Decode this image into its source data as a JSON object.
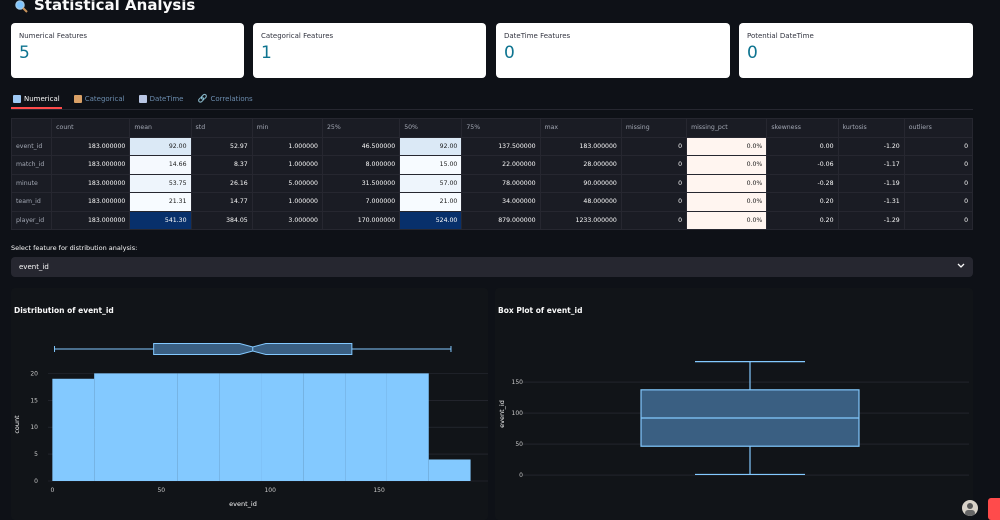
{
  "page": {
    "title": "Statistical Analysis"
  },
  "metrics": [
    {
      "label": "Numerical Features",
      "value": "5"
    },
    {
      "label": "Categorical Features",
      "value": "1"
    },
    {
      "label": "DateTime Features",
      "value": "0"
    },
    {
      "label": "Potential DateTime",
      "value": "0"
    }
  ],
  "tabs": [
    {
      "label": "Numerical",
      "icon": "chart-icon",
      "active": true
    },
    {
      "label": "Categorical",
      "icon": "folder-icon",
      "active": false
    },
    {
      "label": "DateTime",
      "icon": "calendar-icon",
      "active": false
    },
    {
      "label": "Correlations",
      "icon": "link-icon",
      "active": false
    }
  ],
  "table": {
    "columns": [
      "count",
      "mean",
      "std",
      "min",
      "25%",
      "50%",
      "75%",
      "max",
      "missing",
      "missing_pct",
      "skewness",
      "kurtosis",
      "outliers"
    ],
    "rows": [
      {
        "name": "event_id",
        "cells": [
          "183.000000",
          "92.00",
          "52.97",
          "1.000000",
          "46.500000",
          "92.00",
          "137.500000",
          "183.000000",
          "0",
          "0.0%",
          "0.00",
          "-1.20",
          "0"
        ]
      },
      {
        "name": "match_id",
        "cells": [
          "183.000000",
          "14.66",
          "8.37",
          "1.000000",
          "8.000000",
          "15.00",
          "22.000000",
          "28.000000",
          "0",
          "0.0%",
          "-0.06",
          "-1.17",
          "0"
        ]
      },
      {
        "name": "minute",
        "cells": [
          "183.000000",
          "53.75",
          "26.16",
          "5.000000",
          "31.500000",
          "57.00",
          "78.000000",
          "90.000000",
          "0",
          "0.0%",
          "-0.28",
          "-1.19",
          "0"
        ]
      },
      {
        "name": "team_id",
        "cells": [
          "183.000000",
          "21.31",
          "14.77",
          "1.000000",
          "7.000000",
          "21.00",
          "34.000000",
          "48.000000",
          "0",
          "0.0%",
          "0.20",
          "-1.31",
          "0"
        ]
      },
      {
        "name": "player_id",
        "cells": [
          "183.000000",
          "541.30",
          "384.05",
          "3.000000",
          "170.000000",
          "524.00",
          "879.000000",
          "1233.000000",
          "0",
          "0.0%",
          "0.20",
          "-1.29",
          "0"
        ]
      }
    ],
    "highlight_colors": {
      "mean": [
        "#dbe9f6",
        "#f5f9fe",
        "#eef5fc",
        "#f7fbff",
        "#08306b"
      ],
      "median": [
        "#dbe9f6",
        "#f7fbff",
        "#eef5fc",
        "#f7fbff",
        "#08306b"
      ],
      "missing_pct": "#fff5f0"
    }
  },
  "selector": {
    "label": "Select feature for distribution analysis:",
    "value": "event_id"
  },
  "chart_data": [
    {
      "type": "bar",
      "title": "Distribution of event_id",
      "xlabel": "event_id",
      "ylabel": "count",
      "x_ticks": [
        0,
        50,
        100,
        150
      ],
      "y_ticks": [
        0,
        5,
        10,
        15,
        20
      ],
      "xlim": [
        -2,
        200
      ],
      "ylim": [
        0,
        21
      ],
      "bins": [
        {
          "x0": 0,
          "x1": 19.2,
          "count": 19
        },
        {
          "x0": 19.2,
          "x1": 38.4,
          "count": 20
        },
        {
          "x0": 38.4,
          "x1": 57.6,
          "count": 20
        },
        {
          "x0": 57.6,
          "x1": 76.8,
          "count": 20
        },
        {
          "x0": 76.8,
          "x1": 96.0,
          "count": 20
        },
        {
          "x0": 96.0,
          "x1": 115.2,
          "count": 20
        },
        {
          "x0": 115.2,
          "x1": 134.4,
          "count": 20
        },
        {
          "x0": 134.4,
          "x1": 153.6,
          "count": 20
        },
        {
          "x0": 153.6,
          "x1": 172.8,
          "count": 20
        },
        {
          "x0": 172.8,
          "x1": 192.0,
          "count": 4
        }
      ],
      "marginal_box": {
        "min": 1,
        "q1": 46.5,
        "median": 92,
        "q3": 137.5,
        "max": 183,
        "notch_low": 86,
        "notch_high": 98
      },
      "color": "#83c9ff"
    },
    {
      "type": "box",
      "title": "Box Plot of event_id",
      "ylabel": "event_id",
      "y_ticks": [
        0,
        50,
        100,
        150
      ],
      "ylim": [
        -8,
        205
      ],
      "box": {
        "min": 1,
        "q1": 46.5,
        "median": 92,
        "q3": 137.5,
        "max": 183
      },
      "color": "#83c9ff"
    }
  ]
}
